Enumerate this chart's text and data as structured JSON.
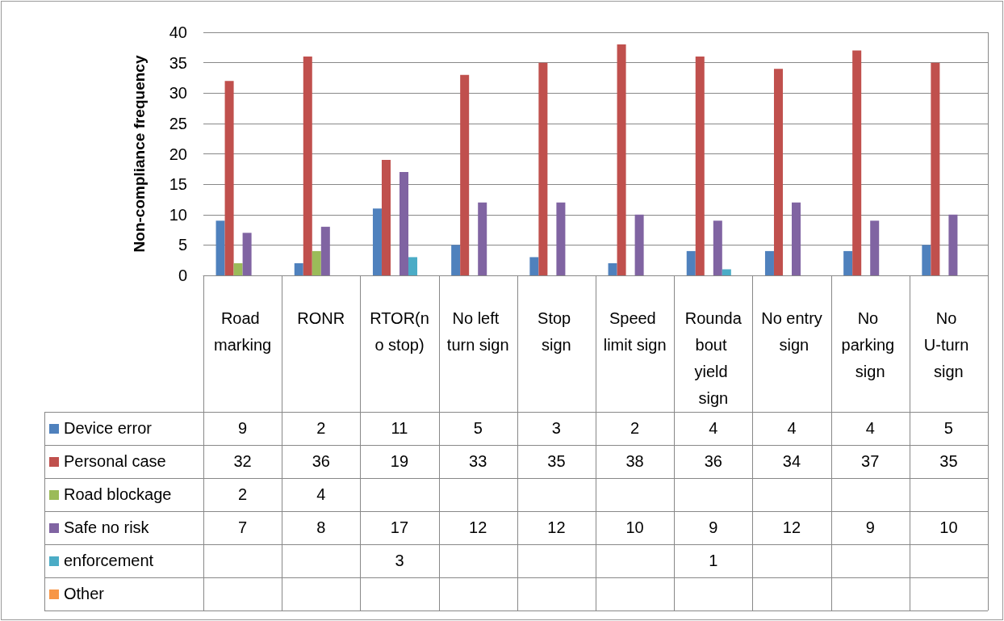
{
  "chart_data": {
    "type": "bar",
    "ylabel": "Non-compliance frequency",
    "categories": [
      "Road marking",
      "RONR",
      "RTOR(no stop)",
      "No left turn sign",
      "Stop sign",
      "Speed limit sign",
      "Roundabout yield sign",
      "No entry sign",
      "No parking sign",
      "No U-turn sign"
    ],
    "series": [
      {
        "name": "Device error",
        "color": "#4f81bd",
        "values": [
          9,
          2,
          11,
          5,
          3,
          2,
          4,
          4,
          4,
          5
        ]
      },
      {
        "name": "Personal case",
        "color": "#c0504d",
        "values": [
          32,
          36,
          19,
          33,
          35,
          38,
          36,
          34,
          37,
          35
        ]
      },
      {
        "name": "Road blockage",
        "color": "#9bbb59",
        "values": [
          2,
          4,
          null,
          null,
          null,
          null,
          null,
          null,
          null,
          null
        ]
      },
      {
        "name": "Safe no risk",
        "color": "#8064a2",
        "values": [
          7,
          8,
          17,
          12,
          12,
          10,
          9,
          12,
          9,
          10
        ]
      },
      {
        "name": "enforcement",
        "color": "#4bacc6",
        "values": [
          null,
          null,
          3,
          null,
          null,
          null,
          1,
          null,
          null,
          null
        ]
      },
      {
        "name": "Other",
        "color": "#f79646",
        "values": [
          null,
          null,
          null,
          null,
          null,
          null,
          null,
          null,
          null,
          null
        ]
      }
    ],
    "ylim": [
      0,
      40
    ],
    "yticks": [
      0,
      5,
      10,
      15,
      20,
      25,
      30,
      35,
      40
    ],
    "grid": "y",
    "legend": "bottom",
    "data_labels": true
  }
}
